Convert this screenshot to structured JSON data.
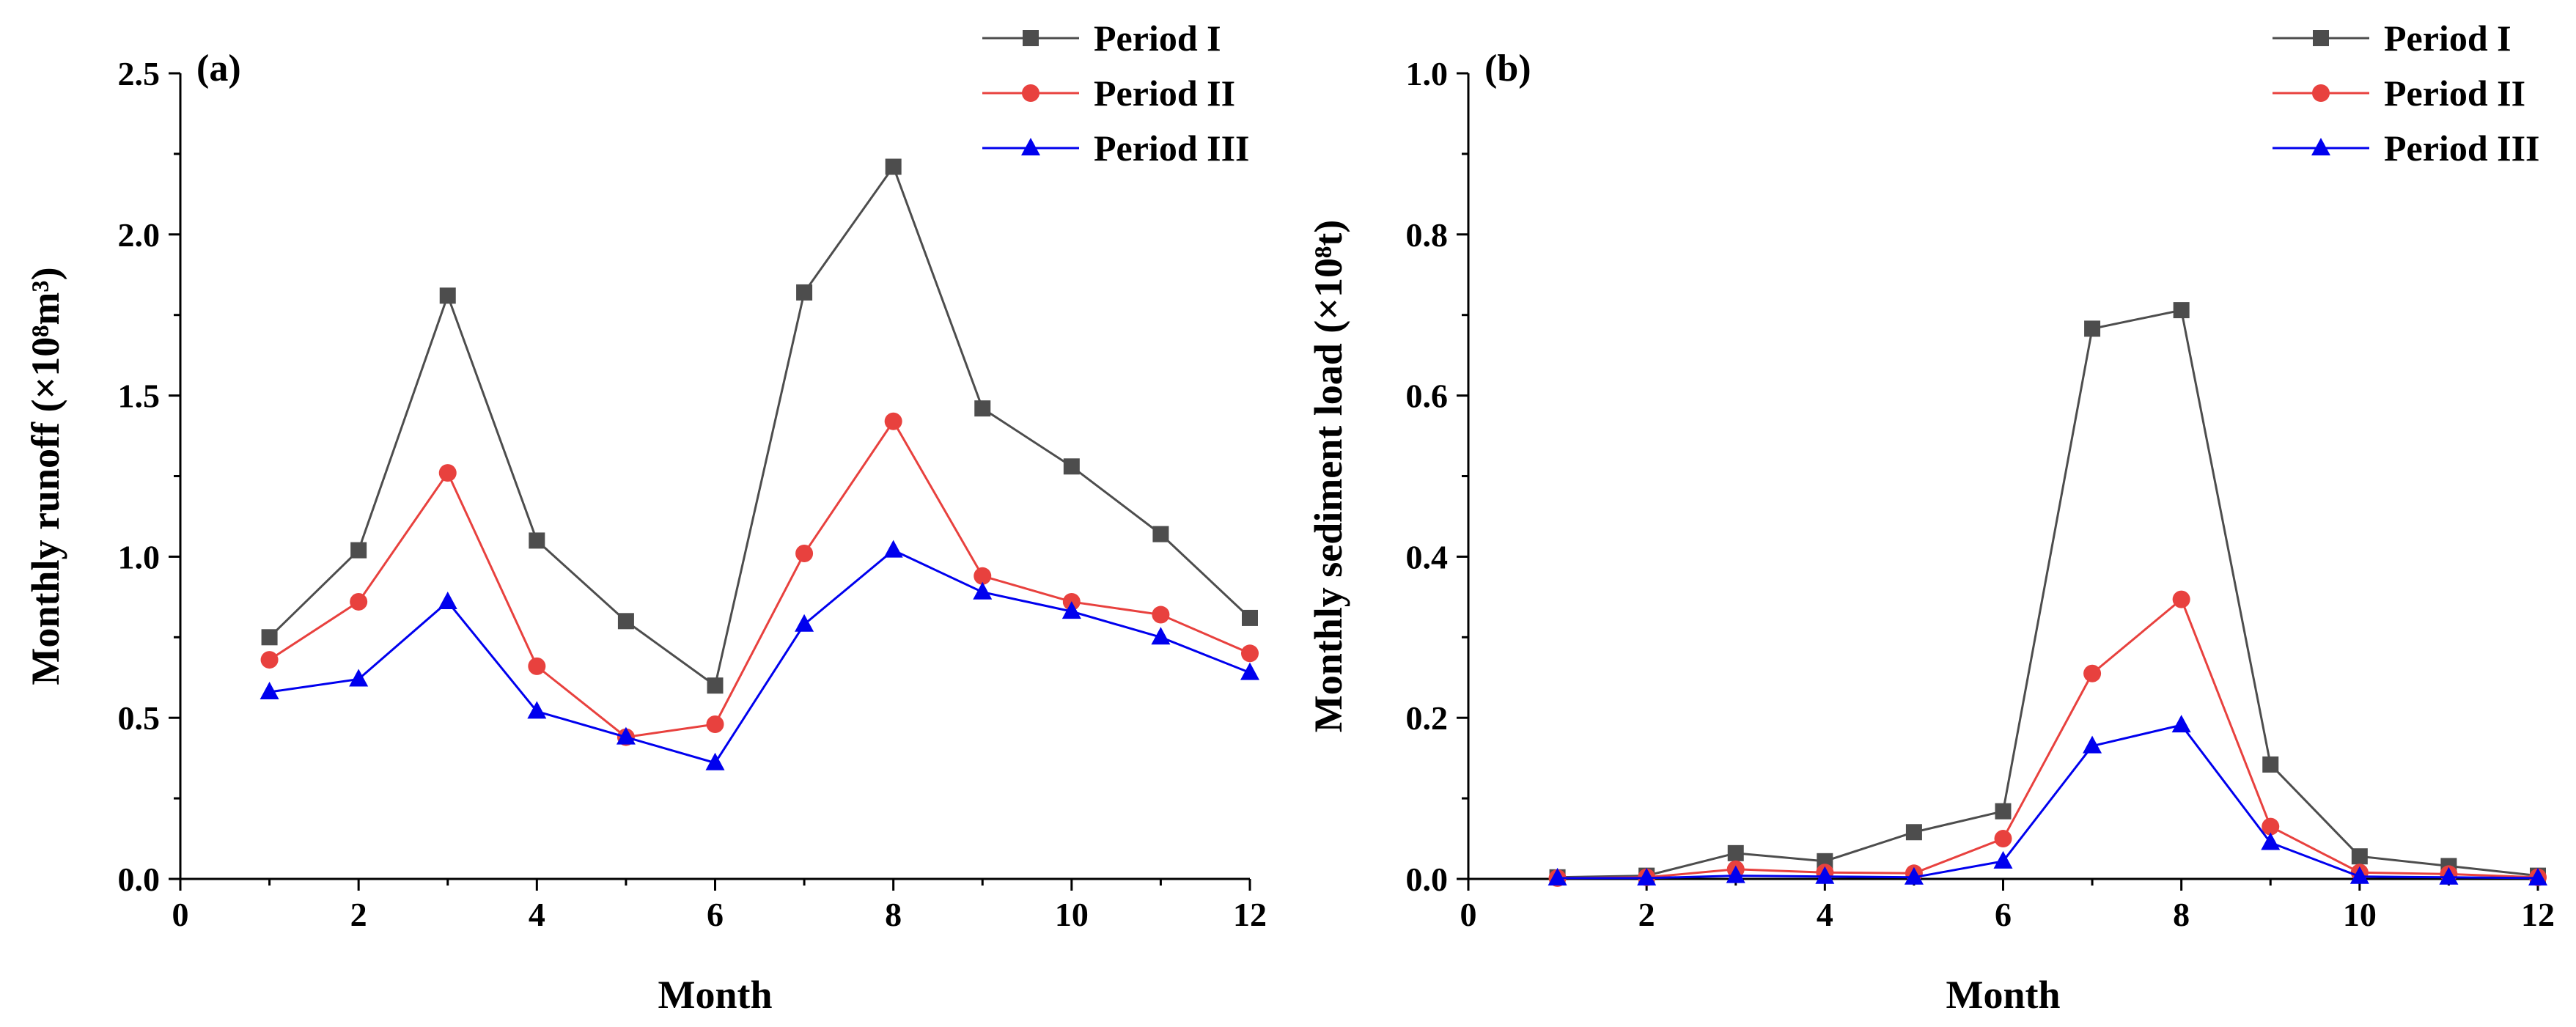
{
  "chart_data": [
    {
      "type": "line",
      "panel_label": "(a)",
      "xlabel": "Month",
      "ylabel": "Monthly runoff (×10⁸m³)",
      "xlim": [
        0,
        12
      ],
      "ylim": [
        0,
        2.5
      ],
      "xticks": [
        "0",
        "2",
        "4",
        "6",
        "8",
        "10",
        "12"
      ],
      "yticks": [
        "0.0",
        "0.5",
        "1.0",
        "1.5",
        "2.0",
        "2.5"
      ],
      "x": [
        1,
        2,
        3,
        4,
        5,
        6,
        7,
        8,
        9,
        10,
        11,
        12
      ],
      "legend_position": "top-right",
      "series": [
        {
          "name": "Period I",
          "color": "#4d4d4d",
          "marker": "square",
          "values": [
            0.75,
            1.02,
            1.81,
            1.05,
            0.8,
            0.6,
            1.82,
            2.21,
            1.46,
            1.28,
            1.07,
            0.81
          ]
        },
        {
          "name": "Period II",
          "color": "#e8413e",
          "marker": "circle",
          "values": [
            0.68,
            0.86,
            1.26,
            0.66,
            0.44,
            0.48,
            1.01,
            1.42,
            0.94,
            0.86,
            0.82,
            0.7
          ]
        },
        {
          "name": "Period III",
          "color": "#0000ee",
          "marker": "triangle",
          "values": [
            0.58,
            0.62,
            0.86,
            0.52,
            0.44,
            0.36,
            0.79,
            1.02,
            0.89,
            0.83,
            0.75,
            0.64
          ]
        }
      ]
    },
    {
      "type": "line",
      "panel_label": "(b)",
      "xlabel": "Month",
      "ylabel": "Monthly sediment load (×10⁸t)",
      "xlim": [
        0,
        12
      ],
      "ylim": [
        0,
        1.0
      ],
      "xticks": [
        "0",
        "2",
        "4",
        "6",
        "8",
        "10",
        "12"
      ],
      "yticks": [
        "0.0",
        "0.2",
        "0.4",
        "0.6",
        "0.8",
        "1.0"
      ],
      "x": [
        1,
        2,
        3,
        4,
        5,
        6,
        7,
        8,
        9,
        10,
        11,
        12
      ],
      "legend_position": "top-right",
      "series": [
        {
          "name": "Period I",
          "color": "#4d4d4d",
          "marker": "square",
          "values": [
            0.002,
            0.004,
            0.032,
            0.022,
            0.058,
            0.084,
            0.683,
            0.706,
            0.142,
            0.028,
            0.016,
            0.004
          ]
        },
        {
          "name": "Period II",
          "color": "#e8413e",
          "marker": "circle",
          "values": [
            0.001,
            0.002,
            0.012,
            0.008,
            0.007,
            0.05,
            0.255,
            0.347,
            0.065,
            0.008,
            0.006,
            0.002
          ]
        },
        {
          "name": "Period III",
          "color": "#0000ee",
          "marker": "triangle",
          "values": [
            0.001,
            0.001,
            0.004,
            0.003,
            0.002,
            0.022,
            0.165,
            0.191,
            0.045,
            0.003,
            0.002,
            0.001
          ]
        }
      ]
    }
  ]
}
